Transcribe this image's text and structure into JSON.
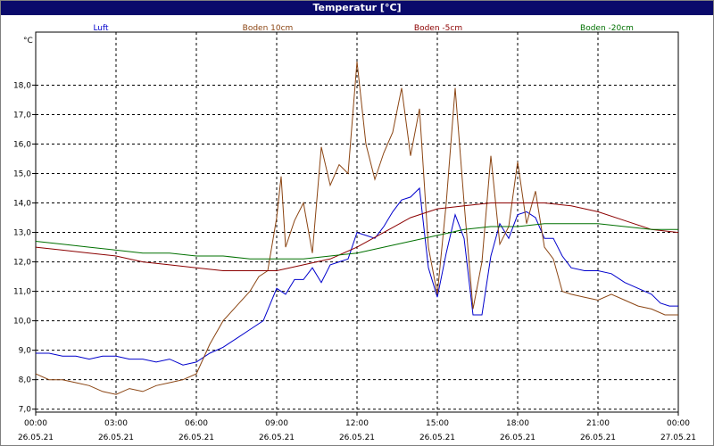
{
  "window": {
    "title": "Temperatur [°C]"
  },
  "chart_data": {
    "type": "line",
    "title": "Temperatur [°C]",
    "ylabel": "°C",
    "ylim": [
      6.9,
      19.8
    ],
    "xlim": [
      "2021-05-26 00:00",
      "2021-05-27 00:00"
    ],
    "grid": true,
    "legend_position": "top",
    "x_ticks": [
      {
        "time": "00:00",
        "date": "26.05.21"
      },
      {
        "time": "03:00",
        "date": "26.05.21"
      },
      {
        "time": "06:00",
        "date": "26.05.21"
      },
      {
        "time": "09:00",
        "date": "26.05.21"
      },
      {
        "time": "12:00",
        "date": "26.05.21"
      },
      {
        "time": "15:00",
        "date": "26.05.21"
      },
      {
        "time": "18:00",
        "date": "26.05.21"
      },
      {
        "time": "21:00",
        "date": "26.05.21"
      },
      {
        "time": "00:00",
        "date": "27.05.21"
      }
    ],
    "y_ticks": [
      "7,0",
      "8,0",
      "9,0",
      "10,0",
      "11,0",
      "12,0",
      "13,0",
      "14,0",
      "15,0",
      "16,0",
      "17,0",
      "18,0"
    ],
    "y_tick_values": [
      7,
      8,
      9,
      10,
      11,
      12,
      13,
      14,
      15,
      16,
      17,
      18
    ],
    "series": [
      {
        "name": "Luft",
        "color": "#0000cc",
        "points": [
          [
            "2021-05-26 00:00",
            8.9
          ],
          [
            "2021-05-26 00:30",
            8.9
          ],
          [
            "2021-05-26 01:00",
            8.8
          ],
          [
            "2021-05-26 01:30",
            8.8
          ],
          [
            "2021-05-26 02:00",
            8.7
          ],
          [
            "2021-05-26 02:30",
            8.8
          ],
          [
            "2021-05-26 03:00",
            8.8
          ],
          [
            "2021-05-26 03:30",
            8.7
          ],
          [
            "2021-05-26 04:00",
            8.7
          ],
          [
            "2021-05-26 04:30",
            8.6
          ],
          [
            "2021-05-26 05:00",
            8.7
          ],
          [
            "2021-05-26 05:30",
            8.5
          ],
          [
            "2021-05-26 06:00",
            8.6
          ],
          [
            "2021-05-26 06:30",
            8.9
          ],
          [
            "2021-05-26 07:00",
            9.1
          ],
          [
            "2021-05-26 07:30",
            9.4
          ],
          [
            "2021-05-26 08:00",
            9.7
          ],
          [
            "2021-05-26 08:30",
            10.0
          ],
          [
            "2021-05-26 09:00",
            11.1
          ],
          [
            "2021-05-26 09:20",
            10.9
          ],
          [
            "2021-05-26 09:40",
            11.4
          ],
          [
            "2021-05-26 10:00",
            11.4
          ],
          [
            "2021-05-26 10:20",
            11.8
          ],
          [
            "2021-05-26 10:40",
            11.3
          ],
          [
            "2021-05-26 11:00",
            11.9
          ],
          [
            "2021-05-26 11:20",
            12.0
          ],
          [
            "2021-05-26 11:40",
            12.1
          ],
          [
            "2021-05-26 12:00",
            13.0
          ],
          [
            "2021-05-26 12:20",
            12.9
          ],
          [
            "2021-05-26 12:40",
            12.8
          ],
          [
            "2021-05-26 13:00",
            13.2
          ],
          [
            "2021-05-26 13:20",
            13.7
          ],
          [
            "2021-05-26 13:40",
            14.1
          ],
          [
            "2021-05-26 14:00",
            14.2
          ],
          [
            "2021-05-26 14:20",
            14.5
          ],
          [
            "2021-05-26 14:40",
            11.8
          ],
          [
            "2021-05-26 15:00",
            10.8
          ],
          [
            "2021-05-26 15:20",
            12.3
          ],
          [
            "2021-05-26 15:40",
            13.6
          ],
          [
            "2021-05-26 16:00",
            12.8
          ],
          [
            "2021-05-26 16:20",
            10.2
          ],
          [
            "2021-05-26 16:40",
            10.2
          ],
          [
            "2021-05-26 17:00",
            12.2
          ],
          [
            "2021-05-26 17:20",
            13.3
          ],
          [
            "2021-05-26 17:40",
            12.8
          ],
          [
            "2021-05-26 18:00",
            13.6
          ],
          [
            "2021-05-26 18:20",
            13.7
          ],
          [
            "2021-05-26 18:40",
            13.5
          ],
          [
            "2021-05-26 19:00",
            12.8
          ],
          [
            "2021-05-26 19:20",
            12.8
          ],
          [
            "2021-05-26 19:40",
            12.2
          ],
          [
            "2021-05-26 20:00",
            11.8
          ],
          [
            "2021-05-26 20:30",
            11.7
          ],
          [
            "2021-05-26 21:00",
            11.7
          ],
          [
            "2021-05-26 21:30",
            11.6
          ],
          [
            "2021-05-26 22:00",
            11.3
          ],
          [
            "2021-05-26 22:30",
            11.1
          ],
          [
            "2021-05-26 23:00",
            10.9
          ],
          [
            "2021-05-26 23:20",
            10.6
          ],
          [
            "2021-05-26 23:40",
            10.5
          ],
          [
            "2021-05-27 00:00",
            10.5
          ]
        ]
      },
      {
        "name": "Boden 10cm",
        "color": "#8b4513",
        "points": [
          [
            "2021-05-26 00:00",
            8.2
          ],
          [
            "2021-05-26 00:30",
            8.0
          ],
          [
            "2021-05-26 01:00",
            8.0
          ],
          [
            "2021-05-26 01:30",
            7.9
          ],
          [
            "2021-05-26 02:00",
            7.8
          ],
          [
            "2021-05-26 02:30",
            7.6
          ],
          [
            "2021-05-26 03:00",
            7.5
          ],
          [
            "2021-05-26 03:30",
            7.7
          ],
          [
            "2021-05-26 04:00",
            7.6
          ],
          [
            "2021-05-26 04:30",
            7.8
          ],
          [
            "2021-05-26 05:00",
            7.9
          ],
          [
            "2021-05-26 05:30",
            8.0
          ],
          [
            "2021-05-26 06:00",
            8.2
          ],
          [
            "2021-05-26 06:30",
            9.2
          ],
          [
            "2021-05-26 07:00",
            10.0
          ],
          [
            "2021-05-26 07:30",
            10.5
          ],
          [
            "2021-05-26 08:00",
            11.0
          ],
          [
            "2021-05-26 08:20",
            11.5
          ],
          [
            "2021-05-26 08:40",
            11.7
          ],
          [
            "2021-05-26 09:00",
            13.5
          ],
          [
            "2021-05-26 09:10",
            14.9
          ],
          [
            "2021-05-26 09:20",
            12.5
          ],
          [
            "2021-05-26 09:40",
            13.4
          ],
          [
            "2021-05-26 10:00",
            14.0
          ],
          [
            "2021-05-26 10:20",
            12.3
          ],
          [
            "2021-05-26 10:40",
            15.9
          ],
          [
            "2021-05-26 11:00",
            14.6
          ],
          [
            "2021-05-26 11:20",
            15.3
          ],
          [
            "2021-05-26 11:40",
            15.0
          ],
          [
            "2021-05-26 12:00",
            18.8
          ],
          [
            "2021-05-26 12:20",
            16.0
          ],
          [
            "2021-05-26 12:40",
            14.8
          ],
          [
            "2021-05-26 13:00",
            15.7
          ],
          [
            "2021-05-26 13:20",
            16.4
          ],
          [
            "2021-05-26 13:40",
            17.9
          ],
          [
            "2021-05-26 14:00",
            15.6
          ],
          [
            "2021-05-26 14:20",
            17.2
          ],
          [
            "2021-05-26 14:40",
            12.5
          ],
          [
            "2021-05-26 15:00",
            10.9
          ],
          [
            "2021-05-26 15:20",
            14.0
          ],
          [
            "2021-05-26 15:40",
            17.9
          ],
          [
            "2021-05-26 16:00",
            14.0
          ],
          [
            "2021-05-26 16:20",
            10.4
          ],
          [
            "2021-05-26 16:40",
            12.0
          ],
          [
            "2021-05-26 17:00",
            15.6
          ],
          [
            "2021-05-26 17:20",
            12.6
          ],
          [
            "2021-05-26 17:40",
            13.2
          ],
          [
            "2021-05-26 18:00",
            15.4
          ],
          [
            "2021-05-26 18:20",
            13.3
          ],
          [
            "2021-05-26 18:40",
            14.4
          ],
          [
            "2021-05-26 19:00",
            12.5
          ],
          [
            "2021-05-26 19:20",
            12.1
          ],
          [
            "2021-05-26 19:40",
            11.0
          ],
          [
            "2021-05-26 20:00",
            10.9
          ],
          [
            "2021-05-26 20:30",
            10.8
          ],
          [
            "2021-05-26 21:00",
            10.7
          ],
          [
            "2021-05-26 21:30",
            10.9
          ],
          [
            "2021-05-26 22:00",
            10.7
          ],
          [
            "2021-05-26 22:30",
            10.5
          ],
          [
            "2021-05-26 23:00",
            10.4
          ],
          [
            "2021-05-26 23:30",
            10.2
          ],
          [
            "2021-05-27 00:00",
            10.2
          ]
        ]
      },
      {
        "name": "Boden -5cm",
        "color": "#8b0000",
        "points": [
          [
            "2021-05-26 00:00",
            12.5
          ],
          [
            "2021-05-26 01:00",
            12.4
          ],
          [
            "2021-05-26 02:00",
            12.3
          ],
          [
            "2021-05-26 03:00",
            12.2
          ],
          [
            "2021-05-26 04:00",
            12.0
          ],
          [
            "2021-05-26 05:00",
            11.9
          ],
          [
            "2021-05-26 06:00",
            11.8
          ],
          [
            "2021-05-26 07:00",
            11.7
          ],
          [
            "2021-05-26 08:00",
            11.7
          ],
          [
            "2021-05-26 09:00",
            11.7
          ],
          [
            "2021-05-26 10:00",
            11.9
          ],
          [
            "2021-05-26 11:00",
            12.1
          ],
          [
            "2021-05-26 12:00",
            12.5
          ],
          [
            "2021-05-26 13:00",
            13.0
          ],
          [
            "2021-05-26 14:00",
            13.5
          ],
          [
            "2021-05-26 15:00",
            13.8
          ],
          [
            "2021-05-26 16:00",
            13.9
          ],
          [
            "2021-05-26 17:00",
            14.0
          ],
          [
            "2021-05-26 18:00",
            14.0
          ],
          [
            "2021-05-26 19:00",
            14.0
          ],
          [
            "2021-05-26 20:00",
            13.9
          ],
          [
            "2021-05-26 21:00",
            13.7
          ],
          [
            "2021-05-26 22:00",
            13.4
          ],
          [
            "2021-05-26 23:00",
            13.1
          ],
          [
            "2021-05-27 00:00",
            13.0
          ]
        ]
      },
      {
        "name": "Boden -20cm",
        "color": "#007000",
        "points": [
          [
            "2021-05-26 00:00",
            12.7
          ],
          [
            "2021-05-26 01:00",
            12.6
          ],
          [
            "2021-05-26 02:00",
            12.5
          ],
          [
            "2021-05-26 03:00",
            12.4
          ],
          [
            "2021-05-26 04:00",
            12.3
          ],
          [
            "2021-05-26 05:00",
            12.3
          ],
          [
            "2021-05-26 06:00",
            12.2
          ],
          [
            "2021-05-26 07:00",
            12.2
          ],
          [
            "2021-05-26 08:00",
            12.1
          ],
          [
            "2021-05-26 09:00",
            12.1
          ],
          [
            "2021-05-26 10:00",
            12.1
          ],
          [
            "2021-05-26 11:00",
            12.2
          ],
          [
            "2021-05-26 12:00",
            12.3
          ],
          [
            "2021-05-26 13:00",
            12.5
          ],
          [
            "2021-05-26 14:00",
            12.7
          ],
          [
            "2021-05-26 15:00",
            12.9
          ],
          [
            "2021-05-26 16:00",
            13.1
          ],
          [
            "2021-05-26 17:00",
            13.2
          ],
          [
            "2021-05-26 18:00",
            13.2
          ],
          [
            "2021-05-26 19:00",
            13.3
          ],
          [
            "2021-05-26 20:00",
            13.3
          ],
          [
            "2021-05-26 21:00",
            13.3
          ],
          [
            "2021-05-26 22:00",
            13.2
          ],
          [
            "2021-05-26 23:00",
            13.1
          ],
          [
            "2021-05-27 00:00",
            13.1
          ]
        ]
      }
    ]
  }
}
